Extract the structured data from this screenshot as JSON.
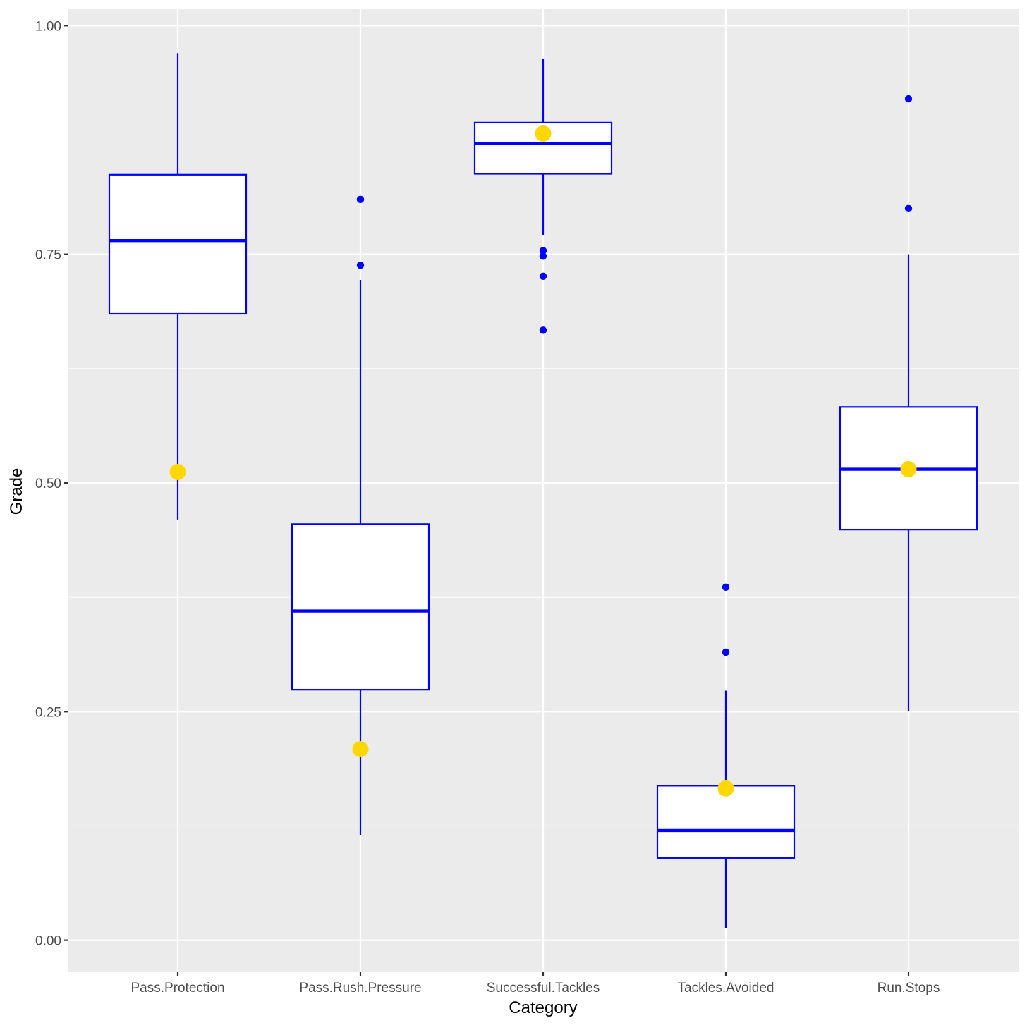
{
  "chart_data": {
    "type": "boxplot",
    "xlabel": "Category",
    "ylabel": "Grade",
    "ylim": [
      -0.035,
      1.018
    ],
    "yticks": [
      0.0,
      0.25,
      0.5,
      0.75,
      1.0
    ],
    "ytick_labels": [
      "0.00",
      "0.25",
      "0.50",
      "0.75",
      "1.00"
    ],
    "grid": true,
    "categories": [
      "Pass.Protection",
      "Pass.Rush.Pressure",
      "Successful.Tackles",
      "Tackles.Avoided",
      "Run.Stops"
    ],
    "boxes": [
      {
        "category": "Pass.Protection",
        "whisker_low": 0.46,
        "q1": 0.685,
        "median": 0.765,
        "q3": 0.837,
        "whisker_high": 0.97,
        "outliers": [],
        "highlight": 0.512
      },
      {
        "category": "Pass.Rush.Pressure",
        "whisker_low": 0.115,
        "q1": 0.274,
        "median": 0.36,
        "q3": 0.455,
        "whisker_high": 0.722,
        "outliers": [
          0.81,
          0.738
        ],
        "highlight": 0.209
      },
      {
        "category": "Successful.Tackles",
        "whisker_low": 0.771,
        "q1": 0.838,
        "median": 0.871,
        "q3": 0.894,
        "whisker_high": 0.964,
        "outliers": [
          0.754,
          0.748,
          0.726,
          0.667
        ],
        "highlight": 0.882
      },
      {
        "category": "Tackles.Avoided",
        "whisker_low": 0.013,
        "q1": 0.09,
        "median": 0.12,
        "q3": 0.169,
        "whisker_high": 0.273,
        "outliers": [
          0.386,
          0.315
        ],
        "highlight": 0.166
      },
      {
        "category": "Run.Stops",
        "whisker_low": 0.251,
        "q1": 0.449,
        "median": 0.515,
        "q3": 0.583,
        "whisker_high": 0.75,
        "outliers": [
          0.92,
          0.8
        ],
        "highlight": 0.515
      }
    ],
    "colors": {
      "panel_background": "#ebebeb",
      "grid_line": "#ffffff",
      "box_outline": "#0000ff",
      "box_fill": "#ffffff",
      "outlier": "#0000ff",
      "highlight_point": "#ffd700"
    }
  }
}
